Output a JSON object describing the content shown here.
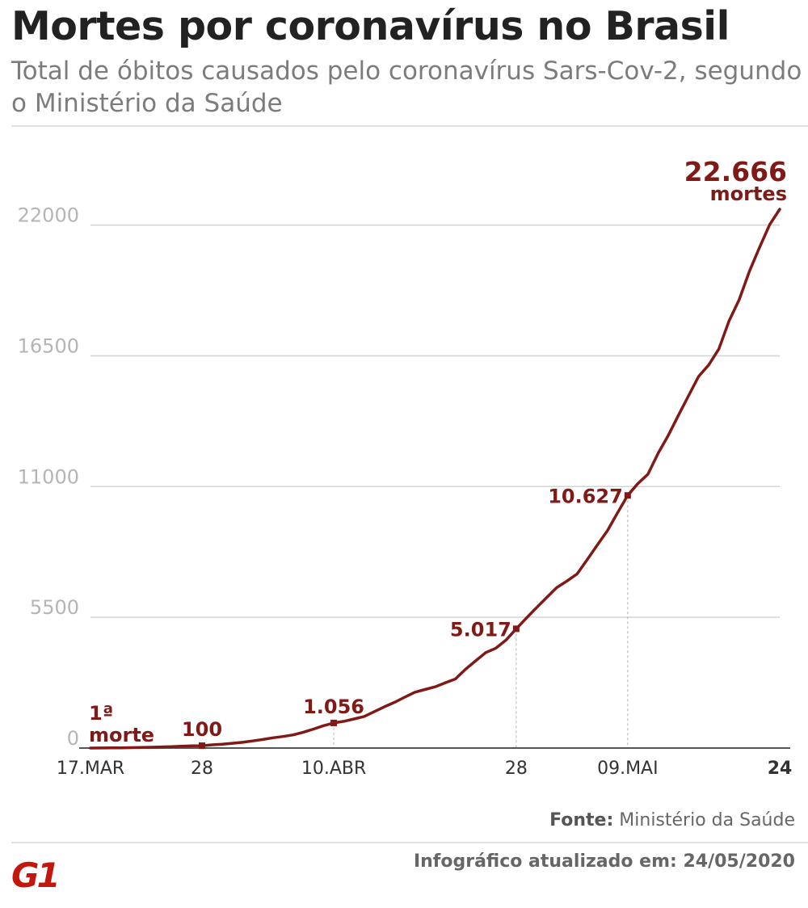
{
  "header": {
    "title": "Mortes por coronavírus no Brasil",
    "subtitle": "Total de óbitos causados pelo coronavírus Sars-Cov-2, segundo o Ministério da Saúde"
  },
  "chart_data": {
    "type": "line",
    "ylim": [
      0,
      22666
    ],
    "yticks": [
      0,
      5500,
      11000,
      16500,
      22000
    ],
    "ytick_labels": [
      "0",
      "5500",
      "11000",
      "16500",
      "22000"
    ],
    "grid": true,
    "line_color": "#7f1a17",
    "x_ticks": [
      {
        "date": "2020-03-17",
        "label": "17.MAR",
        "bold": false
      },
      {
        "date": "2020-03-28",
        "label": "28",
        "bold": false
      },
      {
        "date": "2020-04-10",
        "label": "10.ABR",
        "bold": false
      },
      {
        "date": "2020-04-28",
        "label": "28",
        "bold": false
      },
      {
        "date": "2020-05-09",
        "label": "09.MAI",
        "bold": false
      },
      {
        "date": "2020-05-24",
        "label": "24",
        "bold": true
      }
    ],
    "series": [
      {
        "x": [
          "2020-03-17",
          "2020-03-18",
          "2020-03-19",
          "2020-03-20",
          "2020-03-21",
          "2020-03-22",
          "2020-03-23",
          "2020-03-24",
          "2020-03-25",
          "2020-03-26",
          "2020-03-27",
          "2020-03-28",
          "2020-03-29",
          "2020-03-30",
          "2020-03-31",
          "2020-04-01",
          "2020-04-02",
          "2020-04-03",
          "2020-04-04",
          "2020-04-05",
          "2020-04-06",
          "2020-04-07",
          "2020-04-08",
          "2020-04-09",
          "2020-04-10",
          "2020-04-11",
          "2020-04-12",
          "2020-04-13",
          "2020-04-14",
          "2020-04-15",
          "2020-04-16",
          "2020-04-17",
          "2020-04-18",
          "2020-04-19",
          "2020-04-20",
          "2020-04-21",
          "2020-04-22",
          "2020-04-23",
          "2020-04-24",
          "2020-04-25",
          "2020-04-26",
          "2020-04-27",
          "2020-04-28",
          "2020-04-29",
          "2020-04-30",
          "2020-05-01",
          "2020-05-02",
          "2020-05-03",
          "2020-05-04",
          "2020-05-05",
          "2020-05-06",
          "2020-05-07",
          "2020-05-08",
          "2020-05-09",
          "2020-05-10",
          "2020-05-11",
          "2020-05-12",
          "2020-05-13",
          "2020-05-14",
          "2020-05-15",
          "2020-05-16",
          "2020-05-17",
          "2020-05-18",
          "2020-05-19",
          "2020-05-20",
          "2020-05-21",
          "2020-05-22",
          "2020-05-23",
          "2020-05-24"
        ],
        "y": [
          1,
          4,
          7,
          11,
          18,
          25,
          34,
          46,
          57,
          77,
          92,
          100,
          136,
          159,
          201,
          240,
          299,
          359,
          432,
          486,
          553,
          667,
          800,
          941,
          1056,
          1124,
          1223,
          1328,
          1532,
          1736,
          1924,
          2141,
          2347,
          2462,
          2575,
          2741,
          2906,
          3313,
          3670,
          4016,
          4205,
          4543,
          5017,
          5466,
          5901,
          6329,
          6750,
          7025,
          7321,
          7921,
          8536,
          9146,
          9897,
          10627,
          11123,
          11519,
          12400,
          13149,
          13993,
          14817,
          15633,
          16118,
          16792,
          17971,
          18859,
          20047,
          21048,
          22013,
          22666
        ]
      }
    ],
    "annotations": [
      {
        "date": "2020-03-17",
        "value": 1,
        "label_line1": "1ª",
        "label_line2": "morte"
      },
      {
        "date": "2020-03-28",
        "value": 100,
        "label": "100"
      },
      {
        "date": "2020-04-10",
        "value": 1056,
        "label": "1.056"
      },
      {
        "date": "2020-04-28",
        "value": 5017,
        "label": "5.017"
      },
      {
        "date": "2020-05-09",
        "value": 10627,
        "label": "10.627"
      }
    ],
    "final_label": {
      "value": "22.666",
      "unit": "mortes"
    }
  },
  "footer": {
    "source_label": "Fonte:",
    "source": "Ministério da Saúde",
    "updated": "Infográfico atualizado em: 24/05/2020",
    "logo_text": "G1",
    "logo_color": "#c4170c"
  }
}
